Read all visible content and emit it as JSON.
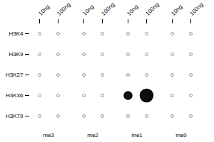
{
  "chart_data": {
    "type": "dot_matrix",
    "categories": [
      "10ng",
      "100ng",
      "10ng",
      "100ng",
      "10ng",
      "100ng",
      "10ng",
      "100ng"
    ],
    "groups": [
      "me3",
      "me2",
      "me1",
      "me0"
    ],
    "series": [
      {
        "name": "H3K4",
        "values": [
          0,
          0,
          0,
          0,
          0,
          0,
          0,
          0
        ]
      },
      {
        "name": "H3K9",
        "values": [
          0,
          0,
          0,
          0,
          0,
          0,
          0,
          0
        ]
      },
      {
        "name": "H3K27",
        "values": [
          0,
          0,
          0,
          0,
          0,
          0,
          0,
          0
        ]
      },
      {
        "name": "H3K36",
        "values": [
          0,
          0,
          0,
          0,
          1,
          2,
          0,
          0
        ]
      },
      {
        "name": "H3K79",
        "values": [
          0,
          0,
          0,
          0,
          0,
          0,
          0,
          0
        ]
      }
    ],
    "color": "#0d0d0d"
  }
}
